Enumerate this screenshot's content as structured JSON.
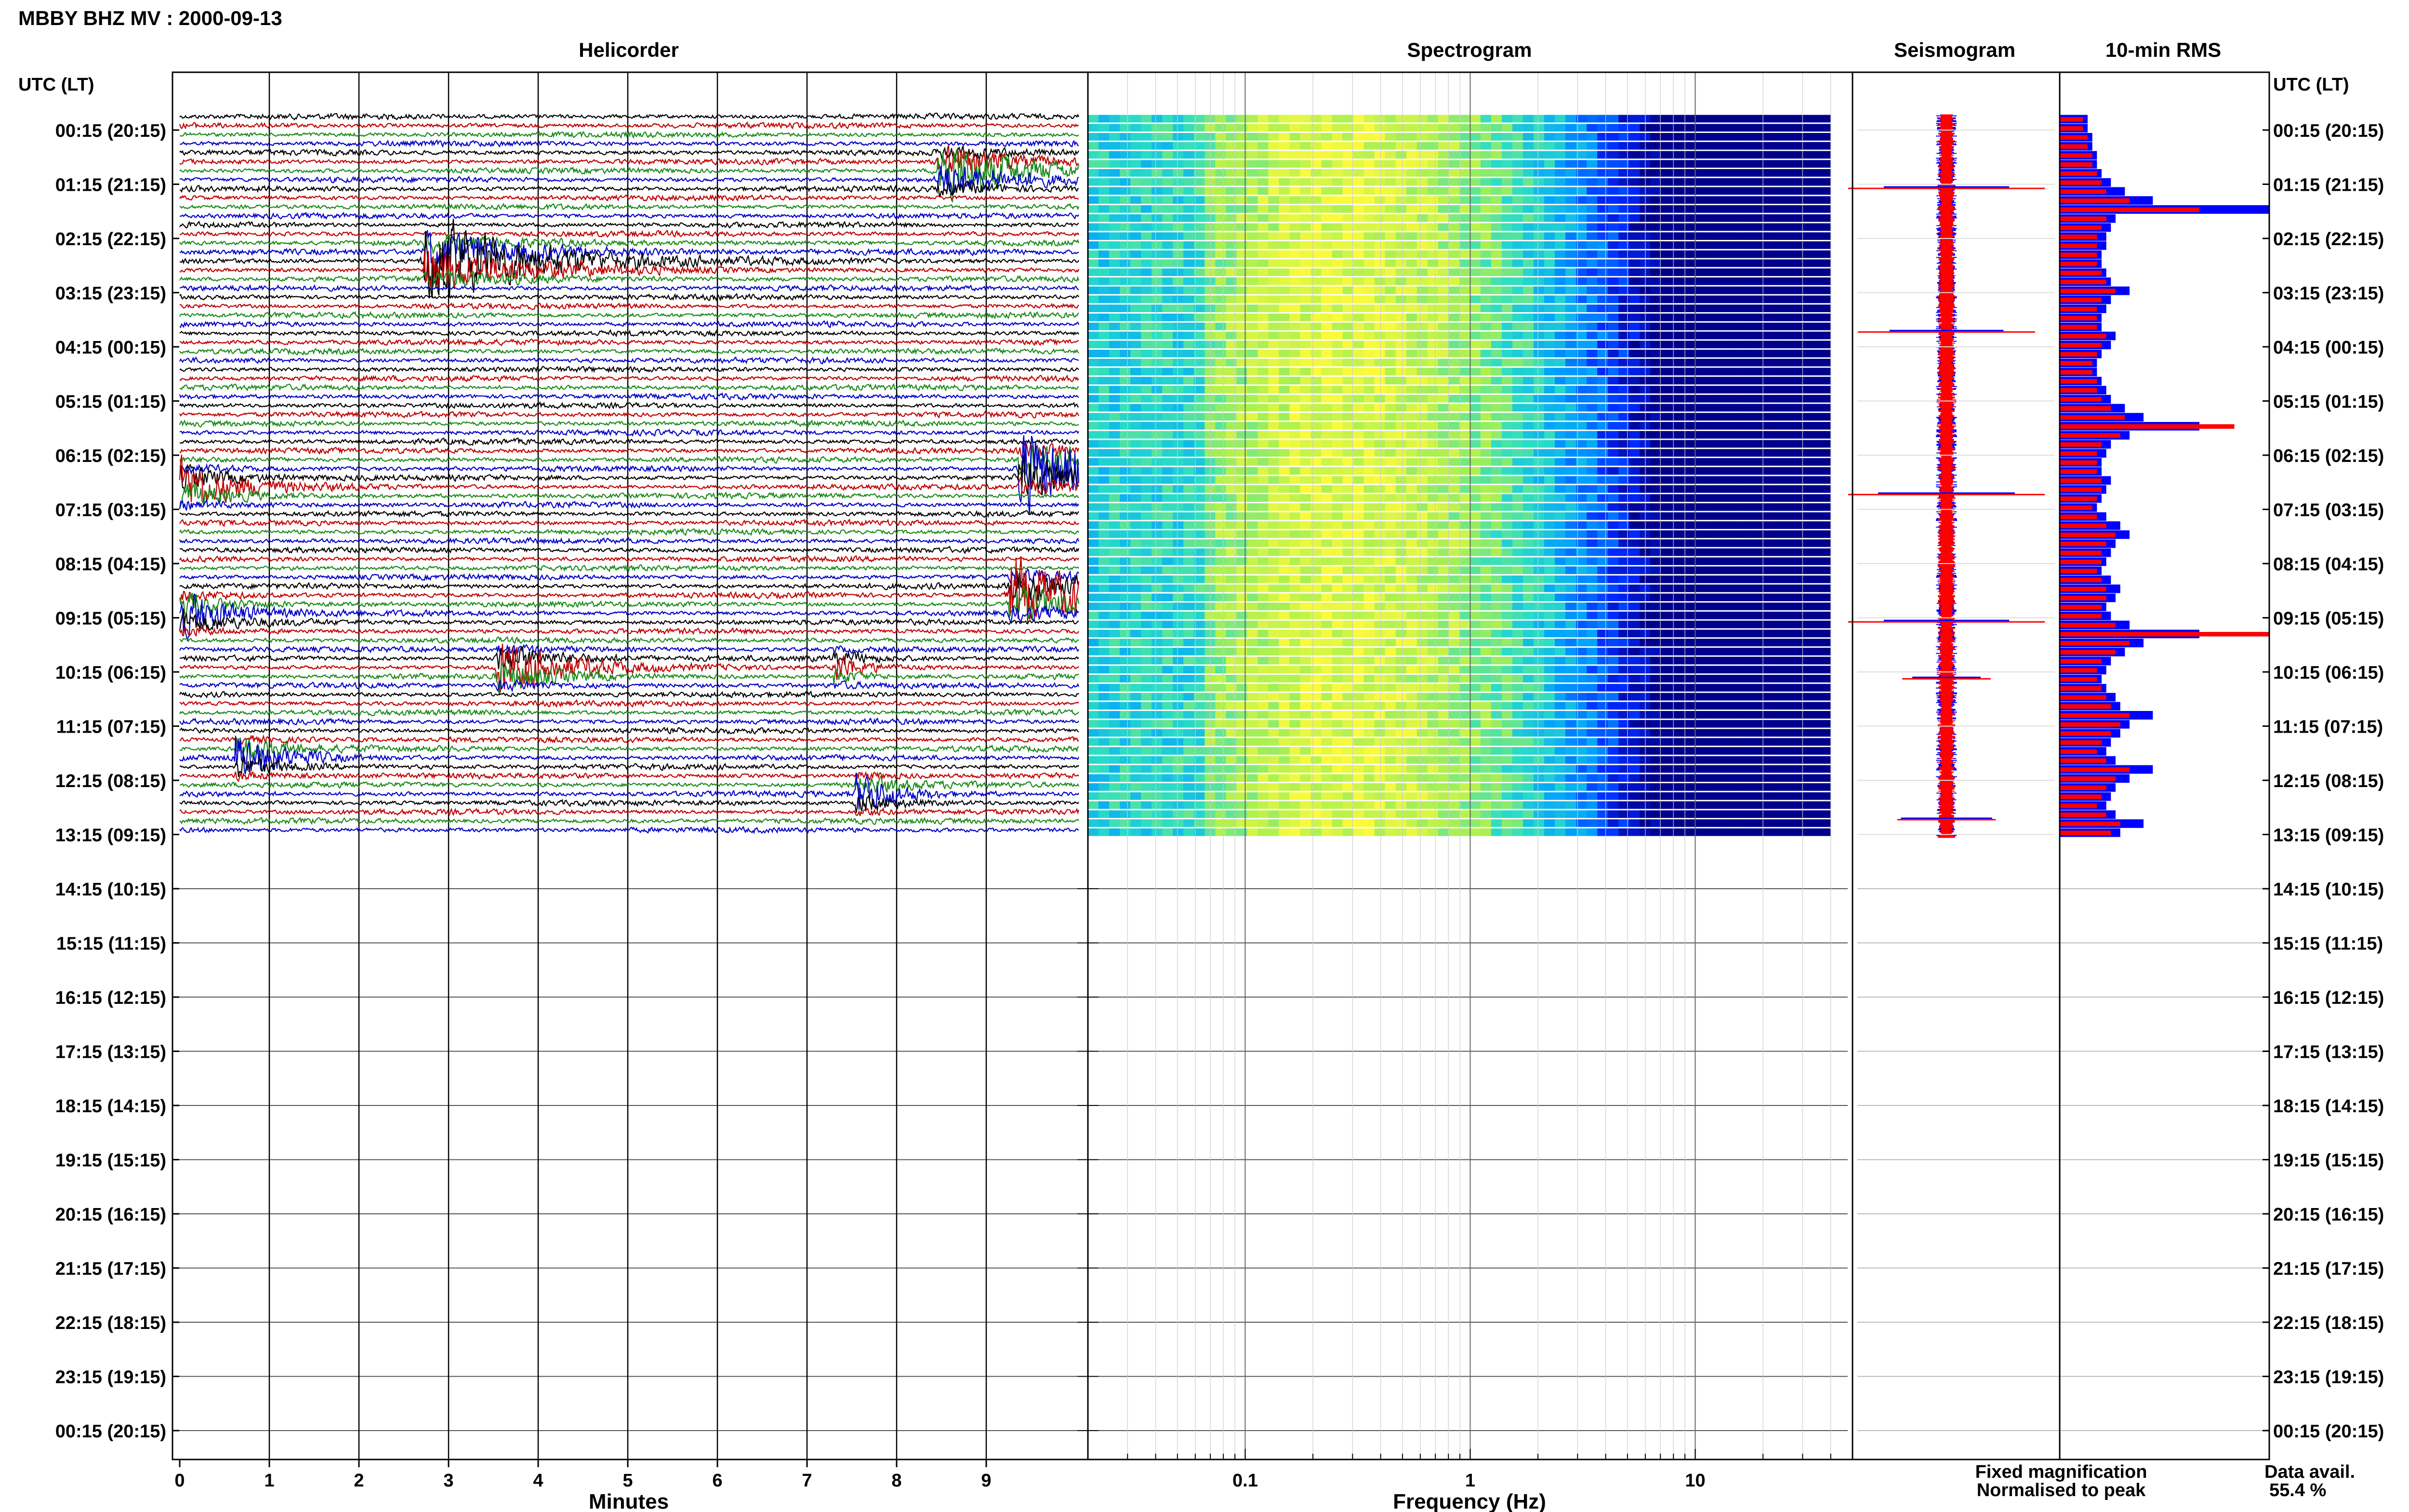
{
  "title": "MBBY BHZ MV : 2000-09-13",
  "panels": {
    "helicorder": "Helicorder",
    "spectrogram": "Spectrogram",
    "seismogram": "Seismogram",
    "rms": "10-min RMS"
  },
  "time_axis": {
    "header": "UTC (LT)",
    "labels": [
      "00:15 (20:15)",
      "01:15 (21:15)",
      "02:15 (22:15)",
      "03:15 (23:15)",
      "04:15 (00:15)",
      "05:15 (01:15)",
      "06:15 (02:15)",
      "07:15 (03:15)",
      "08:15 (04:15)",
      "09:15 (05:15)",
      "10:15 (06:15)",
      "11:15 (07:15)",
      "12:15 (08:15)",
      "13:15 (09:15)",
      "14:15 (10:15)",
      "15:15 (11:15)",
      "16:15 (12:15)",
      "17:15 (13:15)",
      "18:15 (14:15)",
      "19:15 (15:15)",
      "20:15 (16:15)",
      "21:15 (17:15)",
      "22:15 (18:15)",
      "23:15 (19:15)",
      "00:15 (20:15)"
    ]
  },
  "helicorder_axis": {
    "xlabel": "Minutes",
    "ticks": [
      "0",
      "1",
      "2",
      "3",
      "4",
      "5",
      "6",
      "7",
      "8",
      "9"
    ],
    "xlim": [
      0,
      10
    ],
    "trace_colors": [
      "#000000",
      "#c00000",
      "#1a8a1a",
      "#0000c8"
    ]
  },
  "spectrogram_axis": {
    "xlabel": "Frequency (Hz)",
    "ticks": [
      "0.1",
      "1",
      "10"
    ],
    "xlim_hz": [
      0.02,
      50
    ],
    "data_max_hz": 40
  },
  "legend": {
    "fixed": "Fixed magnification",
    "fixed_color": "#0000ff",
    "normalised": "Normalised to peak",
    "normalised_color": "#ff0000"
  },
  "availability": {
    "label": "Data avail.",
    "value": "55.4 %"
  },
  "chart_data": {
    "type": "helicorder",
    "title": "MBBY BHZ MV : 2000-09-13",
    "rows_recorded": 80,
    "rows_total": 144,
    "minutes_per_row": 10,
    "events": [
      {
        "start_hour": 0.95,
        "minute": 8.5,
        "amplitude": 2.2
      },
      {
        "start_hour": 2.7,
        "minute": 2.8,
        "amplitude": 3.0
      },
      {
        "start_hour": 6.45,
        "minute": 9.4,
        "amplitude": 2.6
      },
      {
        "start_hour": 6.8,
        "minute": 0.05,
        "amplitude": 1.6
      },
      {
        "start_hour": 8.9,
        "minute": 9.3,
        "amplitude": 2.4
      },
      {
        "start_hour": 9.15,
        "minute": 0.05,
        "amplitude": 1.5
      },
      {
        "start_hour": 10.1,
        "minute": 3.6,
        "amplitude": 1.8
      },
      {
        "start_hour": 10.1,
        "minute": 7.35,
        "amplitude": 0.8
      },
      {
        "start_hour": 11.8,
        "minute": 0.7,
        "amplitude": 1.4
      },
      {
        "start_hour": 12.5,
        "minute": 7.6,
        "amplitude": 1.2
      }
    ],
    "rms": {
      "fixed": [
        12,
        12,
        14,
        14,
        16,
        16,
        18,
        22,
        28,
        40,
        90,
        24,
        22,
        20,
        20,
        18,
        18,
        20,
        22,
        30,
        22,
        20,
        18,
        18,
        24,
        22,
        18,
        16,
        16,
        18,
        20,
        22,
        28,
        36,
        60,
        30,
        22,
        20,
        18,
        18,
        22,
        20,
        18,
        16,
        20,
        26,
        30,
        24,
        22,
        20,
        18,
        22,
        26,
        24,
        20,
        22,
        30,
        60,
        36,
        28,
        22,
        20,
        18,
        20,
        24,
        26,
        40,
        30,
        26,
        22,
        20,
        24,
        40,
        30,
        24,
        22,
        20,
        24,
        36,
        26
      ],
      "normalised": [
        10,
        10,
        12,
        12,
        14,
        14,
        16,
        18,
        20,
        30,
        60,
        20,
        18,
        16,
        16,
        16,
        16,
        18,
        20,
        24,
        18,
        16,
        16,
        16,
        20,
        18,
        16,
        14,
        14,
        16,
        16,
        18,
        22,
        28,
        75,
        26,
        18,
        16,
        16,
        16,
        18,
        18,
        16,
        14,
        16,
        20,
        24,
        20,
        18,
        18,
        16,
        18,
        20,
        20,
        18,
        18,
        24,
        90,
        30,
        24,
        18,
        16,
        16,
        18,
        20,
        22,
        30,
        26,
        22,
        18,
        16,
        20,
        30,
        24,
        20,
        18,
        16,
        20,
        26,
        22
      ]
    },
    "seismogram_spikes": [
      {
        "hour": 1.3,
        "fixed": 0.55,
        "norm": 1.0
      },
      {
        "hour": 3.95,
        "fixed": 0.5,
        "norm": 0.9
      },
      {
        "hour": 6.95,
        "fixed": 0.6,
        "norm": 1.0
      },
      {
        "hour": 9.3,
        "fixed": 0.55,
        "norm": 1.0
      },
      {
        "hour": 10.35,
        "fixed": 0.3,
        "norm": 0.45
      },
      {
        "hour": 12.95,
        "fixed": 0.4,
        "norm": 0.5
      }
    ]
  }
}
